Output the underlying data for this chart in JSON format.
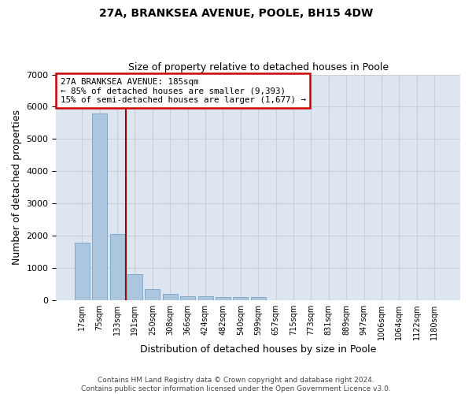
{
  "title1": "27A, BRANKSEA AVENUE, POOLE, BH15 4DW",
  "title2": "Size of property relative to detached houses in Poole",
  "xlabel": "Distribution of detached houses by size in Poole",
  "ylabel": "Number of detached properties",
  "bar_color": "#adc6e0",
  "bar_edge_color": "#6699bb",
  "grid_color": "#c8d0dc",
  "bg_color": "#dde5f0",
  "vline_color": "#990000",
  "annotation_line1": "27A BRANKSEA AVENUE: 185sqm",
  "annotation_line2": "← 85% of detached houses are smaller (9,393)",
  "annotation_line3": "15% of semi-detached houses are larger (1,677) →",
  "annotation_box_edge_color": "#cc0000",
  "categories": [
    "17sqm",
    "75sqm",
    "133sqm",
    "191sqm",
    "250sqm",
    "308sqm",
    "366sqm",
    "424sqm",
    "482sqm",
    "540sqm",
    "599sqm",
    "657sqm",
    "715sqm",
    "773sqm",
    "831sqm",
    "889sqm",
    "947sqm",
    "1006sqm",
    "1064sqm",
    "1122sqm",
    "1180sqm"
  ],
  "values": [
    1780,
    5780,
    2060,
    800,
    340,
    200,
    130,
    115,
    100,
    105,
    95,
    0,
    0,
    0,
    0,
    0,
    0,
    0,
    0,
    0,
    0
  ],
  "ylim": [
    0,
    7000
  ],
  "yticks": [
    0,
    1000,
    2000,
    3000,
    4000,
    5000,
    6000,
    7000
  ],
  "vline_pos": 2.5,
  "footer_line1": "Contains HM Land Registry data © Crown copyright and database right 2024.",
  "footer_line2": "Contains public sector information licensed under the Open Government Licence v3.0."
}
